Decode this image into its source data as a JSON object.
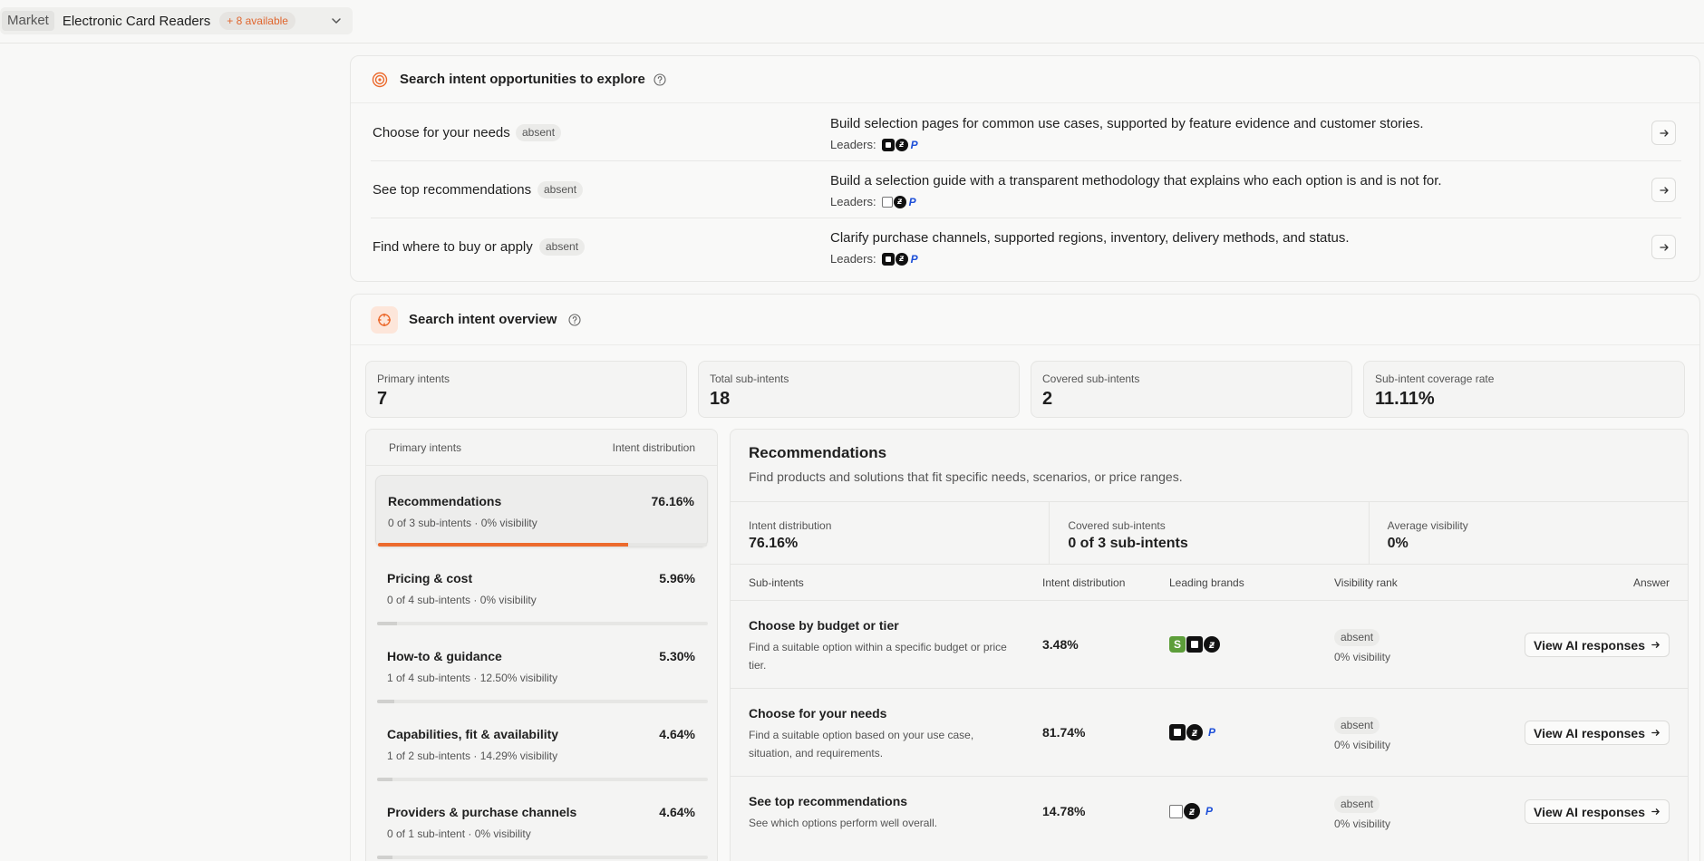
{
  "topbar": {
    "market_label": "Market",
    "market_name": "Electronic Card Readers",
    "available_badge": "+ 8 available"
  },
  "opportunities": {
    "title": "Search intent opportunities to explore",
    "leaders_label": "Leaders:",
    "rows": [
      {
        "name": "Choose for your needs",
        "status": "absent",
        "description": "Build selection pages for common use cases, supported by feature evidence and customer stories.",
        "leaders": [
          "square",
          "clover",
          "paypal"
        ]
      },
      {
        "name": "See top recommendations",
        "status": "absent",
        "description": "Build a selection guide with a transparent methodology that explains who each option is and is not for.",
        "leaders": [
          "generic-box",
          "clover",
          "paypal"
        ]
      },
      {
        "name": "Find where to buy or apply",
        "status": "absent",
        "description": "Clarify purchase channels, supported regions, inventory, delivery methods, and status.",
        "leaders": [
          "square",
          "clover",
          "paypal"
        ]
      }
    ]
  },
  "overview": {
    "title": "Search intent overview",
    "stats": [
      {
        "label": "Primary intents",
        "value": "7"
      },
      {
        "label": "Total sub-intents",
        "value": "18"
      },
      {
        "label": "Covered sub-intents",
        "value": "2"
      },
      {
        "label": "Sub-intent coverage rate",
        "value": "11.11%"
      }
    ],
    "intent_list": {
      "col_left": "Primary intents",
      "col_right": "Intent distribution",
      "items": [
        {
          "name": "Recommendations",
          "pct": "76.16%",
          "sub": "0 of 3 sub-intents · 0% visibility",
          "share": 0.7616
        },
        {
          "name": "Pricing & cost",
          "pct": "5.96%",
          "sub": "0 of 4 sub-intents · 0% visibility",
          "share": 0.0596
        },
        {
          "name": "How-to & guidance",
          "pct": "5.30%",
          "sub": "1 of 4 sub-intents · 12.50% visibility",
          "share": 0.053
        },
        {
          "name": "Capabilities, fit & availability",
          "pct": "4.64%",
          "sub": "1 of 2 sub-intents · 14.29% visibility",
          "share": 0.0464
        },
        {
          "name": "Providers & purchase channels",
          "pct": "4.64%",
          "sub": "0 of 1 sub-intent · 0% visibility",
          "share": 0.0464
        }
      ]
    },
    "detail": {
      "title": "Recommendations",
      "description": "Find products and solutions that fit specific needs, scenarios, or price ranges.",
      "metrics": [
        {
          "label": "Intent distribution",
          "value": "76.16%"
        },
        {
          "label": "Covered sub-intents",
          "value": "0 of 3 sub-intents"
        },
        {
          "label": "Average visibility",
          "value": "0%"
        }
      ],
      "columns": {
        "sub": "Sub-intents",
        "dist": "Intent distribution",
        "brands": "Leading brands",
        "rank": "Visibility rank",
        "answer": "Answer"
      },
      "view_label": "View AI responses",
      "rows": [
        {
          "name": "Choose by budget or tier",
          "desc": "Find a suitable option within a specific budget or price tier.",
          "pct": "3.48%",
          "rank": "absent",
          "vis": "0% visibility",
          "brands": [
            "shopify",
            "square",
            "clover"
          ]
        },
        {
          "name": "Choose for your needs",
          "desc": "Find a suitable option based on your use case, situation, and requirements.",
          "pct": "81.74%",
          "rank": "absent",
          "vis": "0% visibility",
          "brands": [
            "square",
            "clover",
            "paypal"
          ]
        },
        {
          "name": "See top recommendations",
          "desc": "See which options perform well overall.",
          "pct": "14.78%",
          "rank": "absent",
          "vis": "0% visibility",
          "brands": [
            "generic-box",
            "clover",
            "paypal"
          ]
        }
      ]
    }
  },
  "colors": {
    "accent": "#ec6a2d",
    "badge_text": "#e0662e",
    "paypal_blue": "#1d4fd8"
  }
}
